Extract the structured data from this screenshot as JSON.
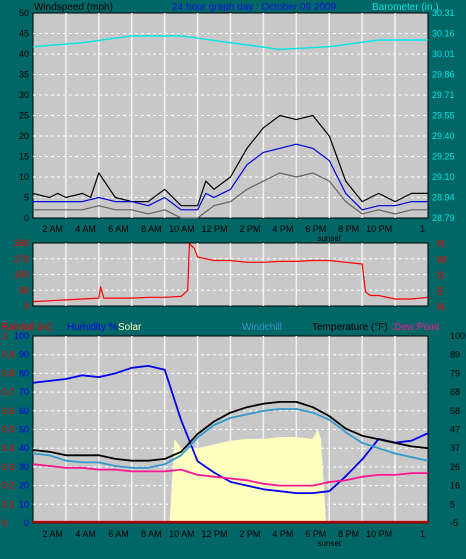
{
  "header": {
    "left_label": "Windspeed (mph)",
    "title": "24 hour graph day : October 09 2009",
    "right_label": "Barometer (in.)"
  },
  "colors": {
    "background": "#006666",
    "plot_bg": "#c8c8c8",
    "grid": "#ffffff",
    "gust": "#000000",
    "wind": "#0000dd",
    "wind_gray": "#606060",
    "barometer": "#00e5e5",
    "direction": "#ff0000",
    "humidity": "#0000ee",
    "solar": "#ffffc0",
    "temperature": "#000000",
    "windchill": "#3399cc",
    "dewpoint": "#ff1493",
    "rainfall": "#ff0000",
    "rain_bar": "#8b0000"
  },
  "x_axis": {
    "tick_labels": [
      "2 AM",
      "4 AM",
      "6 AM",
      "8 AM",
      "10 AM",
      "12 PM",
      "2 PM",
      "4 PM",
      "6 PM",
      "8 PM",
      "10 PM",
      "1"
    ],
    "sunset_label": "sunset",
    "range_hours": [
      0,
      24
    ],
    "sunset_hour": 18
  },
  "chart_data": [
    {
      "type": "line",
      "name_tag": "wind-chart",
      "ylabel": "Windspeed (mph)",
      "y2label": "Barometer (in.)",
      "ylim": [
        0,
        50
      ],
      "yticks": [
        "0",
        "5",
        "10",
        "15",
        "20",
        "25",
        "30",
        "35",
        "40",
        "45",
        "50"
      ],
      "y2lim": [
        28.79,
        30.31
      ],
      "y2ticks": [
        "28.79",
        "28.94",
        "29.10",
        "29.25",
        "29.40",
        "29.55",
        "29.71",
        "29.86",
        "30.01",
        "30.16",
        "30.31"
      ],
      "grid": true,
      "series": [
        {
          "key": "gust",
          "x": [
            0,
            1,
            1.5,
            2,
            3,
            3.5,
            4,
            5,
            6,
            7,
            8,
            9,
            10,
            10.5,
            11,
            12,
            13,
            14,
            15,
            16,
            17,
            18,
            19,
            20,
            21,
            22,
            23,
            24
          ],
          "y": [
            6,
            5,
            6,
            5,
            6,
            5,
            11,
            5,
            4,
            4,
            7,
            3,
            3,
            9,
            7,
            10,
            17,
            22,
            25,
            24,
            25,
            20,
            9,
            4,
            6,
            4,
            6,
            6
          ]
        },
        {
          "key": "wind",
          "x": [
            0,
            1,
            2,
            3,
            4,
            5,
            6,
            7,
            8,
            9,
            10,
            10.5,
            11,
            12,
            13,
            14,
            15,
            16,
            17,
            18,
            19,
            20,
            21,
            22,
            23,
            24
          ],
          "y": [
            4,
            4,
            4,
            4,
            5,
            4,
            4,
            3,
            5,
            2,
            2,
            6,
            5,
            7,
            13,
            16,
            17,
            18,
            17,
            14,
            6,
            2,
            3,
            3,
            4,
            4
          ]
        },
        {
          "key": "wind_gray",
          "x": [
            0,
            1,
            2,
            3,
            4,
            5,
            6,
            7,
            8,
            9,
            10,
            11,
            12,
            13,
            14,
            15,
            16,
            17,
            18,
            19,
            20,
            21,
            22,
            23,
            24
          ],
          "y": [
            2,
            2,
            2,
            2,
            3,
            2,
            2,
            1,
            2,
            0,
            0,
            3,
            4,
            7,
            9,
            11,
            10,
            11,
            9,
            4,
            1,
            2,
            1,
            2,
            2
          ]
        },
        {
          "key": "barometer",
          "x": [
            0,
            3,
            6,
            9,
            12,
            15,
            18,
            21,
            24
          ],
          "y": [
            30.06,
            30.09,
            30.14,
            30.14,
            30.09,
            30.04,
            30.06,
            30.11,
            30.11
          ]
        }
      ]
    },
    {
      "type": "line",
      "name_tag": "direction-chart",
      "ylim": [
        0,
        360
      ],
      "yticks": [
        "0",
        "90",
        "180",
        "270",
        "360"
      ],
      "y2ticks": [
        "N",
        "E",
        "S",
        "W",
        "N"
      ],
      "grid": true,
      "series": [
        {
          "key": "direction",
          "x": [
            0,
            1,
            2,
            3,
            4,
            4.1,
            4.3,
            5,
            6,
            7,
            8,
            9,
            9.4,
            9.5,
            9.8,
            10,
            11,
            12,
            13,
            14,
            15,
            16,
            17,
            18,
            19,
            20,
            20.2,
            20.5,
            21,
            22,
            23,
            24
          ],
          "y": [
            25,
            30,
            35,
            40,
            45,
            110,
            45,
            45,
            45,
            50,
            50,
            55,
            90,
            355,
            330,
            280,
            260,
            260,
            250,
            250,
            255,
            255,
            260,
            260,
            250,
            240,
            80,
            60,
            60,
            40,
            40,
            50
          ]
        }
      ]
    },
    {
      "type": "line",
      "name_tag": "multi-chart",
      "left_labels": {
        "rainfall": "Rainfall (in)",
        "humidity": "Humidity %",
        "solar": "Solar",
        "windchill": "Windchill",
        "temperature": "Temperature (°F)",
        "dewpoint": "Dew Point"
      },
      "ylim_rain": [
        0,
        1
      ],
      "yticks_rain": [
        "0",
        "0.1",
        "0.2",
        "0.3",
        "0.4",
        "0.5",
        "0.6",
        "0.7",
        "0.8",
        "0.9",
        "1"
      ],
      "ylim_humidity": [
        0,
        100
      ],
      "yticks_humidity": [
        "0",
        "10",
        "20",
        "30",
        "40",
        "50",
        "60",
        "70",
        "80",
        "90",
        "100"
      ],
      "ylim_temp": [
        -5,
        100
      ],
      "yticks_temp": [
        "-5",
        "5",
        "16",
        "26",
        "37",
        "47",
        "58",
        "68",
        "79",
        "89",
        "100"
      ],
      "grid": true,
      "series": [
        {
          "key": "solar",
          "x": [
            8.3,
            8.6,
            9,
            10,
            11,
            12,
            13,
            14,
            15,
            16,
            17,
            17.3,
            17.5,
            17.8
          ],
          "y": [
            0,
            45,
            40,
            40,
            42,
            44,
            45,
            45,
            46,
            46,
            45,
            50,
            45,
            0
          ]
        },
        {
          "key": "humidity",
          "x": [
            0,
            1,
            2,
            3,
            4,
            5,
            6,
            7,
            8,
            9,
            10,
            11,
            12,
            13,
            14,
            15,
            16,
            17,
            18,
            19,
            20,
            21,
            22,
            23,
            24
          ],
          "y": [
            75,
            76,
            77,
            79,
            78,
            80,
            83,
            84,
            82,
            55,
            33,
            27,
            22,
            20,
            18,
            17,
            16,
            16,
            17,
            25,
            34,
            45,
            43,
            44,
            48
          ]
        },
        {
          "key": "temperature",
          "x": [
            0,
            1,
            2,
            3,
            4,
            5,
            6,
            7,
            8,
            9,
            10,
            11,
            12,
            13,
            14,
            15,
            16,
            17,
            18,
            19,
            20,
            21,
            22,
            23,
            24
          ],
          "y": [
            36,
            35,
            33,
            33,
            33,
            31,
            30,
            30,
            31,
            35,
            45,
            52,
            57,
            60,
            62,
            63,
            63,
            60,
            55,
            48,
            44,
            42,
            40,
            38,
            37
          ]
        },
        {
          "key": "windchill",
          "x": [
            0,
            1,
            2,
            3,
            4,
            5,
            6,
            7,
            8,
            9,
            10,
            11,
            12,
            13,
            14,
            15,
            16,
            17,
            18,
            19,
            20,
            21,
            22,
            23,
            24
          ],
          "y": [
            34,
            33,
            30,
            29,
            29,
            27,
            26,
            26,
            28,
            33,
            43,
            50,
            54,
            56,
            58,
            59,
            59,
            57,
            53,
            46,
            40,
            37,
            34,
            32,
            30
          ]
        },
        {
          "key": "dewpoint",
          "x": [
            0,
            1,
            2,
            3,
            4,
            5,
            6,
            7,
            8,
            9,
            10,
            11,
            12,
            13,
            14,
            15,
            16,
            17,
            18,
            19,
            20,
            21,
            22,
            23,
            24
          ],
          "y": [
            28,
            27,
            26,
            26,
            25,
            25,
            24,
            24,
            24,
            25,
            22,
            21,
            20,
            19,
            17,
            16,
            16,
            16,
            18,
            19,
            21,
            22,
            22,
            23,
            23
          ]
        },
        {
          "key": "rainfall",
          "x": [
            0,
            24
          ],
          "y": [
            0.01,
            0.01
          ]
        }
      ]
    }
  ]
}
